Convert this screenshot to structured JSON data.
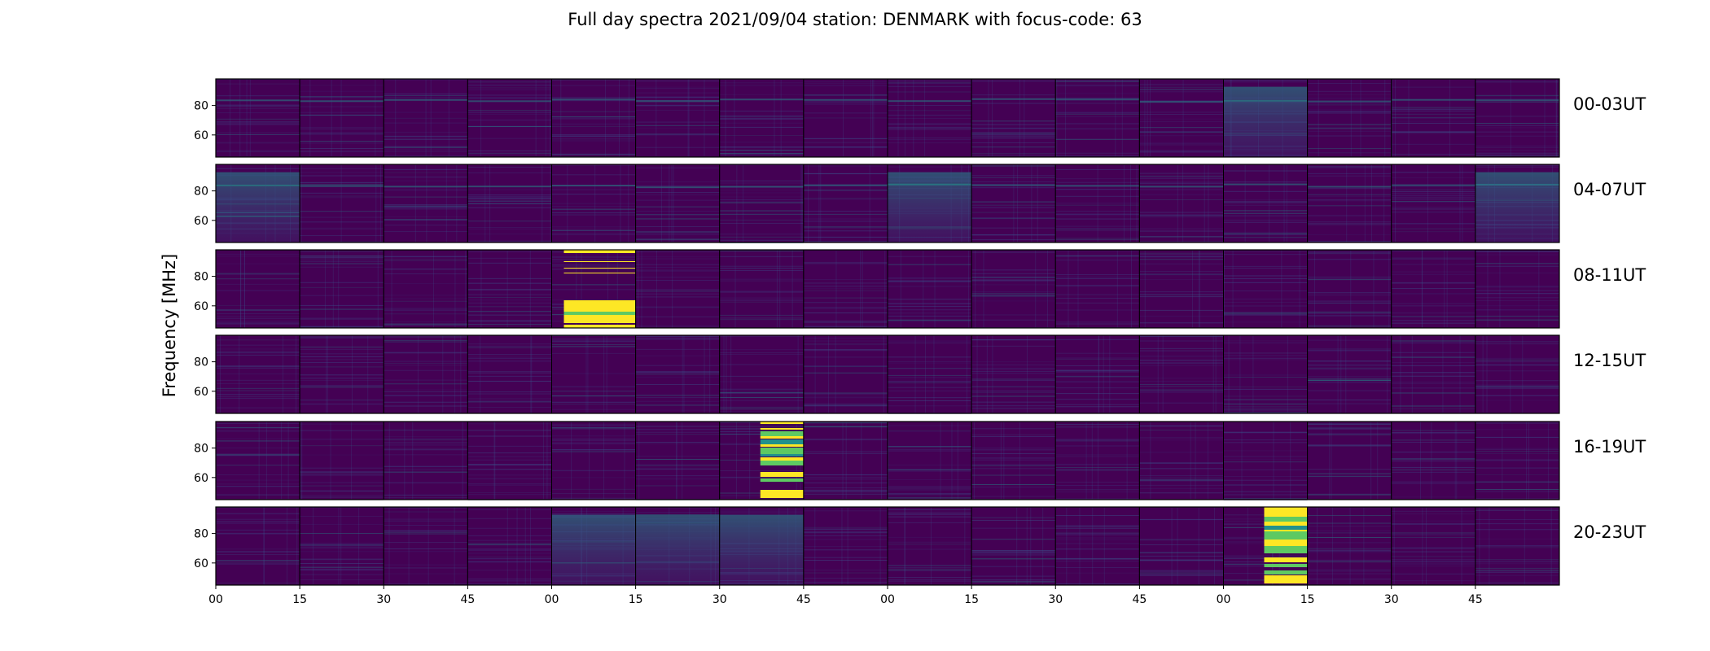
{
  "title": "Full day spectra 2021/09/04 station: DENMARK with focus-code: 63",
  "ylabel": "Frequency [MHz]",
  "colors": {
    "background": "#440154",
    "mid": "#3b528b",
    "teal": "#21918c",
    "green": "#5ec962",
    "yellow": "#fde725",
    "frame": "#000000"
  },
  "chart_data": {
    "type": "heatmap",
    "colormap": "viridis",
    "rows": [
      {
        "label": "00-03UT",
        "bright_panels": [
          12
        ],
        "burst_panels": []
      },
      {
        "label": "04-07UT",
        "bright_panels": [
          0,
          8,
          15
        ],
        "burst_panels": []
      },
      {
        "label": "08-11UT",
        "bright_panels": [],
        "burst_panels": [
          4
        ]
      },
      {
        "label": "12-15UT",
        "bright_panels": [],
        "burst_panels": []
      },
      {
        "label": "16-19UT",
        "bright_panels": [],
        "burst_panels": [
          6
        ]
      },
      {
        "label": "20-23UT",
        "bright_panels": [
          4,
          5,
          6
        ],
        "burst_panels": [
          12
        ]
      }
    ],
    "panels_per_row": 16,
    "y_ticks": [
      "80",
      "60"
    ],
    "x_ticks": [
      "00",
      "15",
      "30",
      "45",
      "00",
      "15",
      "30",
      "45",
      "00",
      "15",
      "30",
      "45",
      "00",
      "15",
      "30",
      "45"
    ],
    "ylim": [
      45,
      98
    ]
  }
}
